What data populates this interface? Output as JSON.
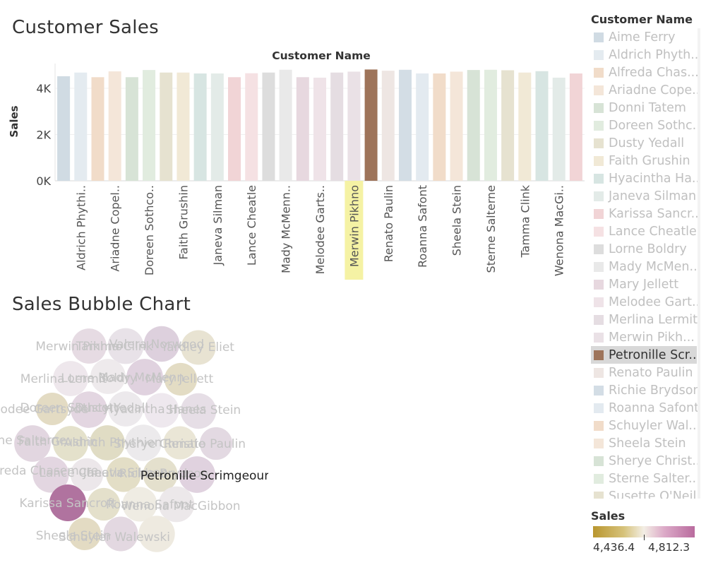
{
  "titles": {
    "bar": "Customer Sales",
    "bubble": "Sales Bubble Chart"
  },
  "bar_chart": {
    "header": "Customer Name",
    "y_axis_label": "Sales",
    "y_ticks": [
      "4K",
      "2K",
      "0K"
    ],
    "highlight_color": "#a07858",
    "hover_color": "#f5f2a4"
  },
  "legend": {
    "title": "Customer Name",
    "items": [
      {
        "name": "Aime Ferry",
        "color": "#d0dbe3"
      },
      {
        "name": "Aldrich Phyth...",
        "color": "#e4ebf0"
      },
      {
        "name": "Alfreda Chas...",
        "color": "#f1dcc9"
      },
      {
        "name": "Ariadne Cope...",
        "color": "#f4e6d9"
      },
      {
        "name": "Donni Tatem",
        "color": "#d7e3d6"
      },
      {
        "name": "Doreen Sothc...",
        "color": "#e1ecdf"
      },
      {
        "name": "Dusty Yedall",
        "color": "#e6e2d0"
      },
      {
        "name": "Faith Grushin",
        "color": "#f1e9d6"
      },
      {
        "name": "Hyacintha Ha...",
        "color": "#d7e5e2"
      },
      {
        "name": "Janeva Silman",
        "color": "#e3ebe8"
      },
      {
        "name": "Karissa Sancr...",
        "color": "#f1d4d6"
      },
      {
        "name": "Lance Cheatle",
        "color": "#f5e1e3"
      },
      {
        "name": "Lorne Boldry",
        "color": "#dddddd"
      },
      {
        "name": "Mady McMen...",
        "color": "#e9e9e9"
      },
      {
        "name": "Mary Jellett",
        "color": "#e7d8df"
      },
      {
        "name": "Melodee Gart...",
        "color": "#efe3e8"
      },
      {
        "name": "Merlina Lermit",
        "color": "#e5dde2"
      },
      {
        "name": "Merwin Pikh...",
        "color": "#eae1e6"
      },
      {
        "name": "Petronille Scr...",
        "color": "#9e745a",
        "selected": true
      },
      {
        "name": "Renato Paulin",
        "color": "#eee6e3"
      },
      {
        "name": "Richie Brydson",
        "color": "#d3dde5"
      },
      {
        "name": "Roanna Safont",
        "color": "#e3eaf0"
      },
      {
        "name": "Schuyler Wal...",
        "color": "#f1dcc9"
      },
      {
        "name": "Sheela Stein",
        "color": "#f4e6d9"
      },
      {
        "name": "Sherye Christ...",
        "color": "#d7e3d6"
      },
      {
        "name": "Sterne Salter...",
        "color": "#e1ecdf"
      },
      {
        "name": "Susette O'Neil",
        "color": "#e6e2d0"
      }
    ]
  },
  "sales_legend": {
    "title": "Sales",
    "min": "4,436.4",
    "max": "4,812.3",
    "colors": [
      "#b9962f",
      "#f3eee5",
      "#b96b9e"
    ]
  },
  "bubble_labels": [
    "Merwin Pikhno",
    "Tamma Clink",
    "Valera Norwood",
    "Yardley Eliet",
    "Merlina Lermit",
    "Lorne Boldry",
    "Mady McMenn",
    "Mary Jellett",
    "Melodee Gartsyde",
    "Doreen Sothcott",
    "Dusty Yedall",
    "Hyacintha Hanes",
    "Sheela Stein",
    "Sterne Salterne",
    "Faith Grushin",
    "Aldrich Phythien",
    "Sherye Christie",
    "Renato Paulin",
    "Alfreda Chasemore",
    "Lance Cheatle",
    "Janeva Silman",
    "Richie Brydson",
    "Petronille Scrimgeour",
    "Karissa Sancroft",
    "Roanna Safont",
    "Wenona MacGibbon",
    "Sheela Stein",
    "Schuyler Walewski"
  ],
  "chart_data": [
    {
      "type": "bar",
      "title": "Customer Sales",
      "xlabel": "Customer Name",
      "ylabel": "Sales",
      "ylim": [
        0,
        5000
      ],
      "yticks": [
        0,
        2000,
        4000
      ],
      "tick_labels_shown": [
        "Aldrich Phythi..",
        "Ariadne Copel..",
        "Doreen Sothco..",
        "Faith Grushin",
        "Janeva Silman",
        "Lance Cheatle",
        "Mady McMenn..",
        "Melodee Garts..",
        "Merwin Pikhno",
        "Renato Paulin",
        "Roanna Safont",
        "Sheela Stein",
        "Sterne Salterne",
        "Tamma Clink",
        "Wenona MacGi.."
      ],
      "categories": [
        "Aime Ferry",
        "Aldrich Phythian",
        "Alfreda Chasemore",
        "Ariadne Copeland",
        "Donni Tatem",
        "Doreen Sothcott",
        "Dusty Yedall",
        "Faith Grushin",
        "Hyacintha Hanes",
        "Janeva Silman",
        "Karissa Sancroft",
        "Lance Cheatle",
        "Lorne Boldry",
        "Mady McMenn",
        "Mary Jellett",
        "Melodee Gartsyde",
        "Merlina Lermit",
        "Merwin Pikhno",
        "Petronille Scrimgeour",
        "Renato Paulin",
        "Richie Brydson",
        "Roanna Safont",
        "Schuyler Walewski",
        "Sheela Stein",
        "Sherye Christie",
        "Sterne Salterne",
        "Susette O'Neil",
        "Tamma Clink",
        "Valera Norwood",
        "Wenona MacGibbon",
        "Yardley Eliet"
      ],
      "values": [
        4520,
        4680,
        4480,
        4730,
        4480,
        4790,
        4680,
        4680,
        4640,
        4640,
        4480,
        4650,
        4680,
        4800,
        4480,
        4460,
        4680,
        4720,
        4812,
        4760,
        4800,
        4640,
        4640,
        4720,
        4790,
        4800,
        4780,
        4680,
        4740,
        4460,
        4640
      ],
      "colors": [
        "#d0dbe3",
        "#e4ebf0",
        "#f1dcc9",
        "#f4e6d9",
        "#d7e3d6",
        "#e1ecdf",
        "#e6e2d0",
        "#f1e9d6",
        "#d7e5e2",
        "#e3ebe8",
        "#f1d4d6",
        "#f5e1e3",
        "#dddddd",
        "#e9e9e9",
        "#e7d8df",
        "#efe3e8",
        "#e5dde2",
        "#eae1e6",
        "#9e745a",
        "#eee6e3",
        "#d3dde5",
        "#e3eaf0",
        "#f1dcc9",
        "#f4e6d9",
        "#d7e3d6",
        "#e1ecdf",
        "#e6e2d0",
        "#f1e9d6",
        "#d7e5e2",
        "#e3ebe8",
        "#f1d4d6"
      ],
      "highlighted": "Petronille Scrimgeour",
      "hovered": "Merwin Pikhno"
    },
    {
      "type": "scatter",
      "title": "Sales Bubble Chart",
      "encoding": "bubble size and color = Sales",
      "points": [
        {
          "name": "Tamma Clink",
          "value": 4680,
          "color": "#e6dbe3"
        },
        {
          "name": "Valera Norwood",
          "value": 4740,
          "color": "#e8e2e8"
        },
        {
          "name": "Merwin Pikhno",
          "value": 4720,
          "color": "#ddd0dd"
        },
        {
          "name": "Yardley Eliet",
          "value": 4640,
          "color": "#e8e3d2"
        },
        {
          "name": "Merlina Lermit",
          "value": 4680,
          "color": "#eee7ec"
        },
        {
          "name": "Lorne Boldry",
          "value": 4680,
          "color": "#eeeaec"
        },
        {
          "name": "Mady McMenn",
          "value": 4800,
          "color": "#e0d2df"
        },
        {
          "name": "Mary Jellett",
          "value": 4480,
          "color": "#e3dcc4"
        },
        {
          "name": "Melodee Gartsyde",
          "value": 4460,
          "color": "#e3dbc3"
        },
        {
          "name": "Doreen Sothcott",
          "value": 4790,
          "color": "#e3d6e1"
        },
        {
          "name": "Dusty Yedall",
          "value": 4680,
          "color": "#ece9ec"
        },
        {
          "name": "Hyacintha Hanes",
          "value": 4640,
          "color": "#eee8ee"
        },
        {
          "name": "Sheela Stein",
          "value": 4720,
          "color": "#e6dee6"
        },
        {
          "name": "Sterne Salterne",
          "value": 4800,
          "color": "#e2d6e0"
        },
        {
          "name": "Faith Grushin",
          "value": 4680,
          "color": "#e4e1cb"
        },
        {
          "name": "Aldrich Phythian",
          "value": 4680,
          "color": "#e0dcc4"
        },
        {
          "name": "Sherye Christie",
          "value": 4790,
          "color": "#eceaec"
        },
        {
          "name": "Aime Ferry",
          "value": 4520,
          "color": "#eae6d6"
        },
        {
          "name": "Donni Tatem",
          "value": 4480,
          "color": "#e3d9e2"
        },
        {
          "name": "Renato Paulin",
          "value": 4760,
          "color": "#e3d6e1"
        },
        {
          "name": "Alfreda Chasemore",
          "value": 4480,
          "color": "#ece7ea"
        },
        {
          "name": "Lance Cheatle",
          "value": 4650,
          "color": "#e3dec6"
        },
        {
          "name": "Janeva Silman",
          "value": 4640,
          "color": "#e4e0cd"
        },
        {
          "name": "Richie Brydson",
          "value": 4800,
          "color": "#e0d2df"
        },
        {
          "name": "Petronille Scrimgeour",
          "value": 4812,
          "color": "#b0739f"
        },
        {
          "name": "Karissa Sancroft",
          "value": 4480,
          "color": "#e4e0cb"
        },
        {
          "name": "Roanna Safont",
          "value": 4640,
          "color": "#efece3"
        },
        {
          "name": "Ariadne Copeland",
          "value": 4730,
          "color": "#ece8ea"
        },
        {
          "name": "Wenona MacGibbon",
          "value": 4460,
          "color": "#e3dbc3"
        },
        {
          "name": "Schuyler Walewski",
          "value": 4640,
          "color": "#e3d8e1"
        },
        {
          "name": "Susette O'Neil",
          "value": 4780,
          "color": "#eeeae0"
        }
      ]
    }
  ]
}
